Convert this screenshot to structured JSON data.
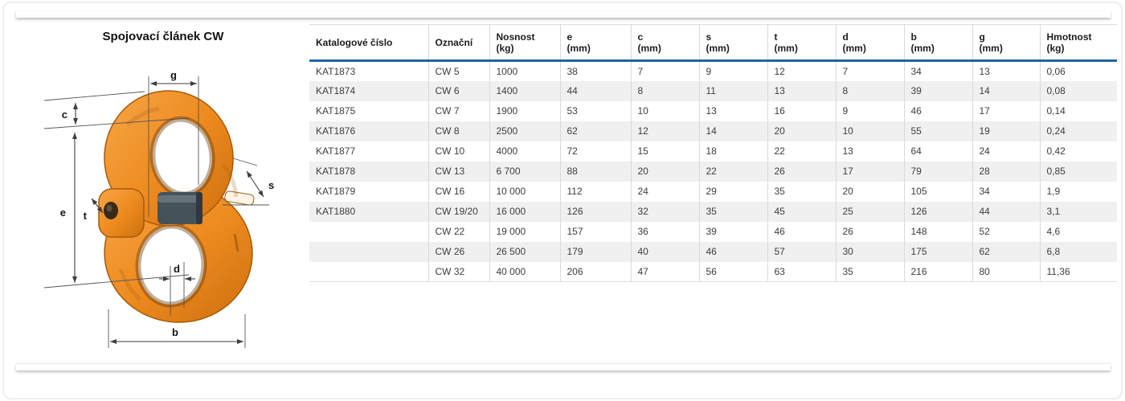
{
  "page": {
    "title": "Spojovací článek CW"
  },
  "colors": {
    "accent_blue": "#1e5ca7",
    "header_rule_blue": "#2264a5",
    "link_orange": "#ed8a1e",
    "row_stripe": "#f0f0f0"
  },
  "figure": {
    "description_name": "connecting-link-diagram",
    "dimension_labels": {
      "g": "g",
      "c": "c",
      "e": "e",
      "t": "t",
      "s": "s",
      "d": "d",
      "b": "b"
    }
  },
  "table": {
    "columns": [
      {
        "label": "Katalogové číslo",
        "unit": ""
      },
      {
        "label": "Označní",
        "unit": ""
      },
      {
        "label": "Nosnost",
        "unit": "(kg)"
      },
      {
        "label": "e",
        "unit": "(mm)"
      },
      {
        "label": "c",
        "unit": "(mm)"
      },
      {
        "label": "s",
        "unit": "(mm)"
      },
      {
        "label": "t",
        "unit": "(mm)"
      },
      {
        "label": "d",
        "unit": "(mm)"
      },
      {
        "label": "b",
        "unit": "(mm)"
      },
      {
        "label": "g",
        "unit": "(mm)"
      },
      {
        "label": "Hmotnost",
        "unit": "(kg)"
      }
    ],
    "rows": [
      [
        "KAT1873",
        "CW 5",
        "1000",
        "38",
        "7",
        "9",
        "12",
        "7",
        "34",
        "13",
        "0,06"
      ],
      [
        "KAT1874",
        "CW 6",
        "1400",
        "44",
        "8",
        "11",
        "13",
        "8",
        "39",
        "14",
        "0,08"
      ],
      [
        "KAT1875",
        "CW 7",
        "1900",
        "53",
        "10",
        "13",
        "16",
        "9",
        "46",
        "17",
        "0,14"
      ],
      [
        "KAT1876",
        "CW 8",
        "2500",
        "62",
        "12",
        "14",
        "20",
        "10",
        "55",
        "19",
        "0,24"
      ],
      [
        "KAT1877",
        "CW 10",
        "4000",
        "72",
        "15",
        "18",
        "22",
        "13",
        "64",
        "24",
        "0,42"
      ],
      [
        "KAT1878",
        "CW 13",
        "6 700",
        "88",
        "20",
        "22",
        "26",
        "17",
        "79",
        "28",
        "0,85"
      ],
      [
        "KAT1879",
        "CW 16",
        "10 000",
        "112",
        "24",
        "29",
        "35",
        "20",
        "105",
        "34",
        "1,9"
      ],
      [
        "KAT1880",
        "CW 19/20",
        "16 000",
        "126",
        "32",
        "35",
        "45",
        "25",
        "126",
        "44",
        "3,1"
      ],
      [
        "",
        "CW 22",
        "19 000",
        "157",
        "36",
        "39",
        "46",
        "26",
        "148",
        "52",
        "4,6"
      ],
      [
        "",
        "CW 26",
        "26 500",
        "179",
        "40",
        "46",
        "57",
        "30",
        "175",
        "62",
        "6,8"
      ],
      [
        "",
        "CW 32",
        "40 000",
        "206",
        "47",
        "56",
        "63",
        "35",
        "216",
        "80",
        "11,36"
      ]
    ]
  }
}
